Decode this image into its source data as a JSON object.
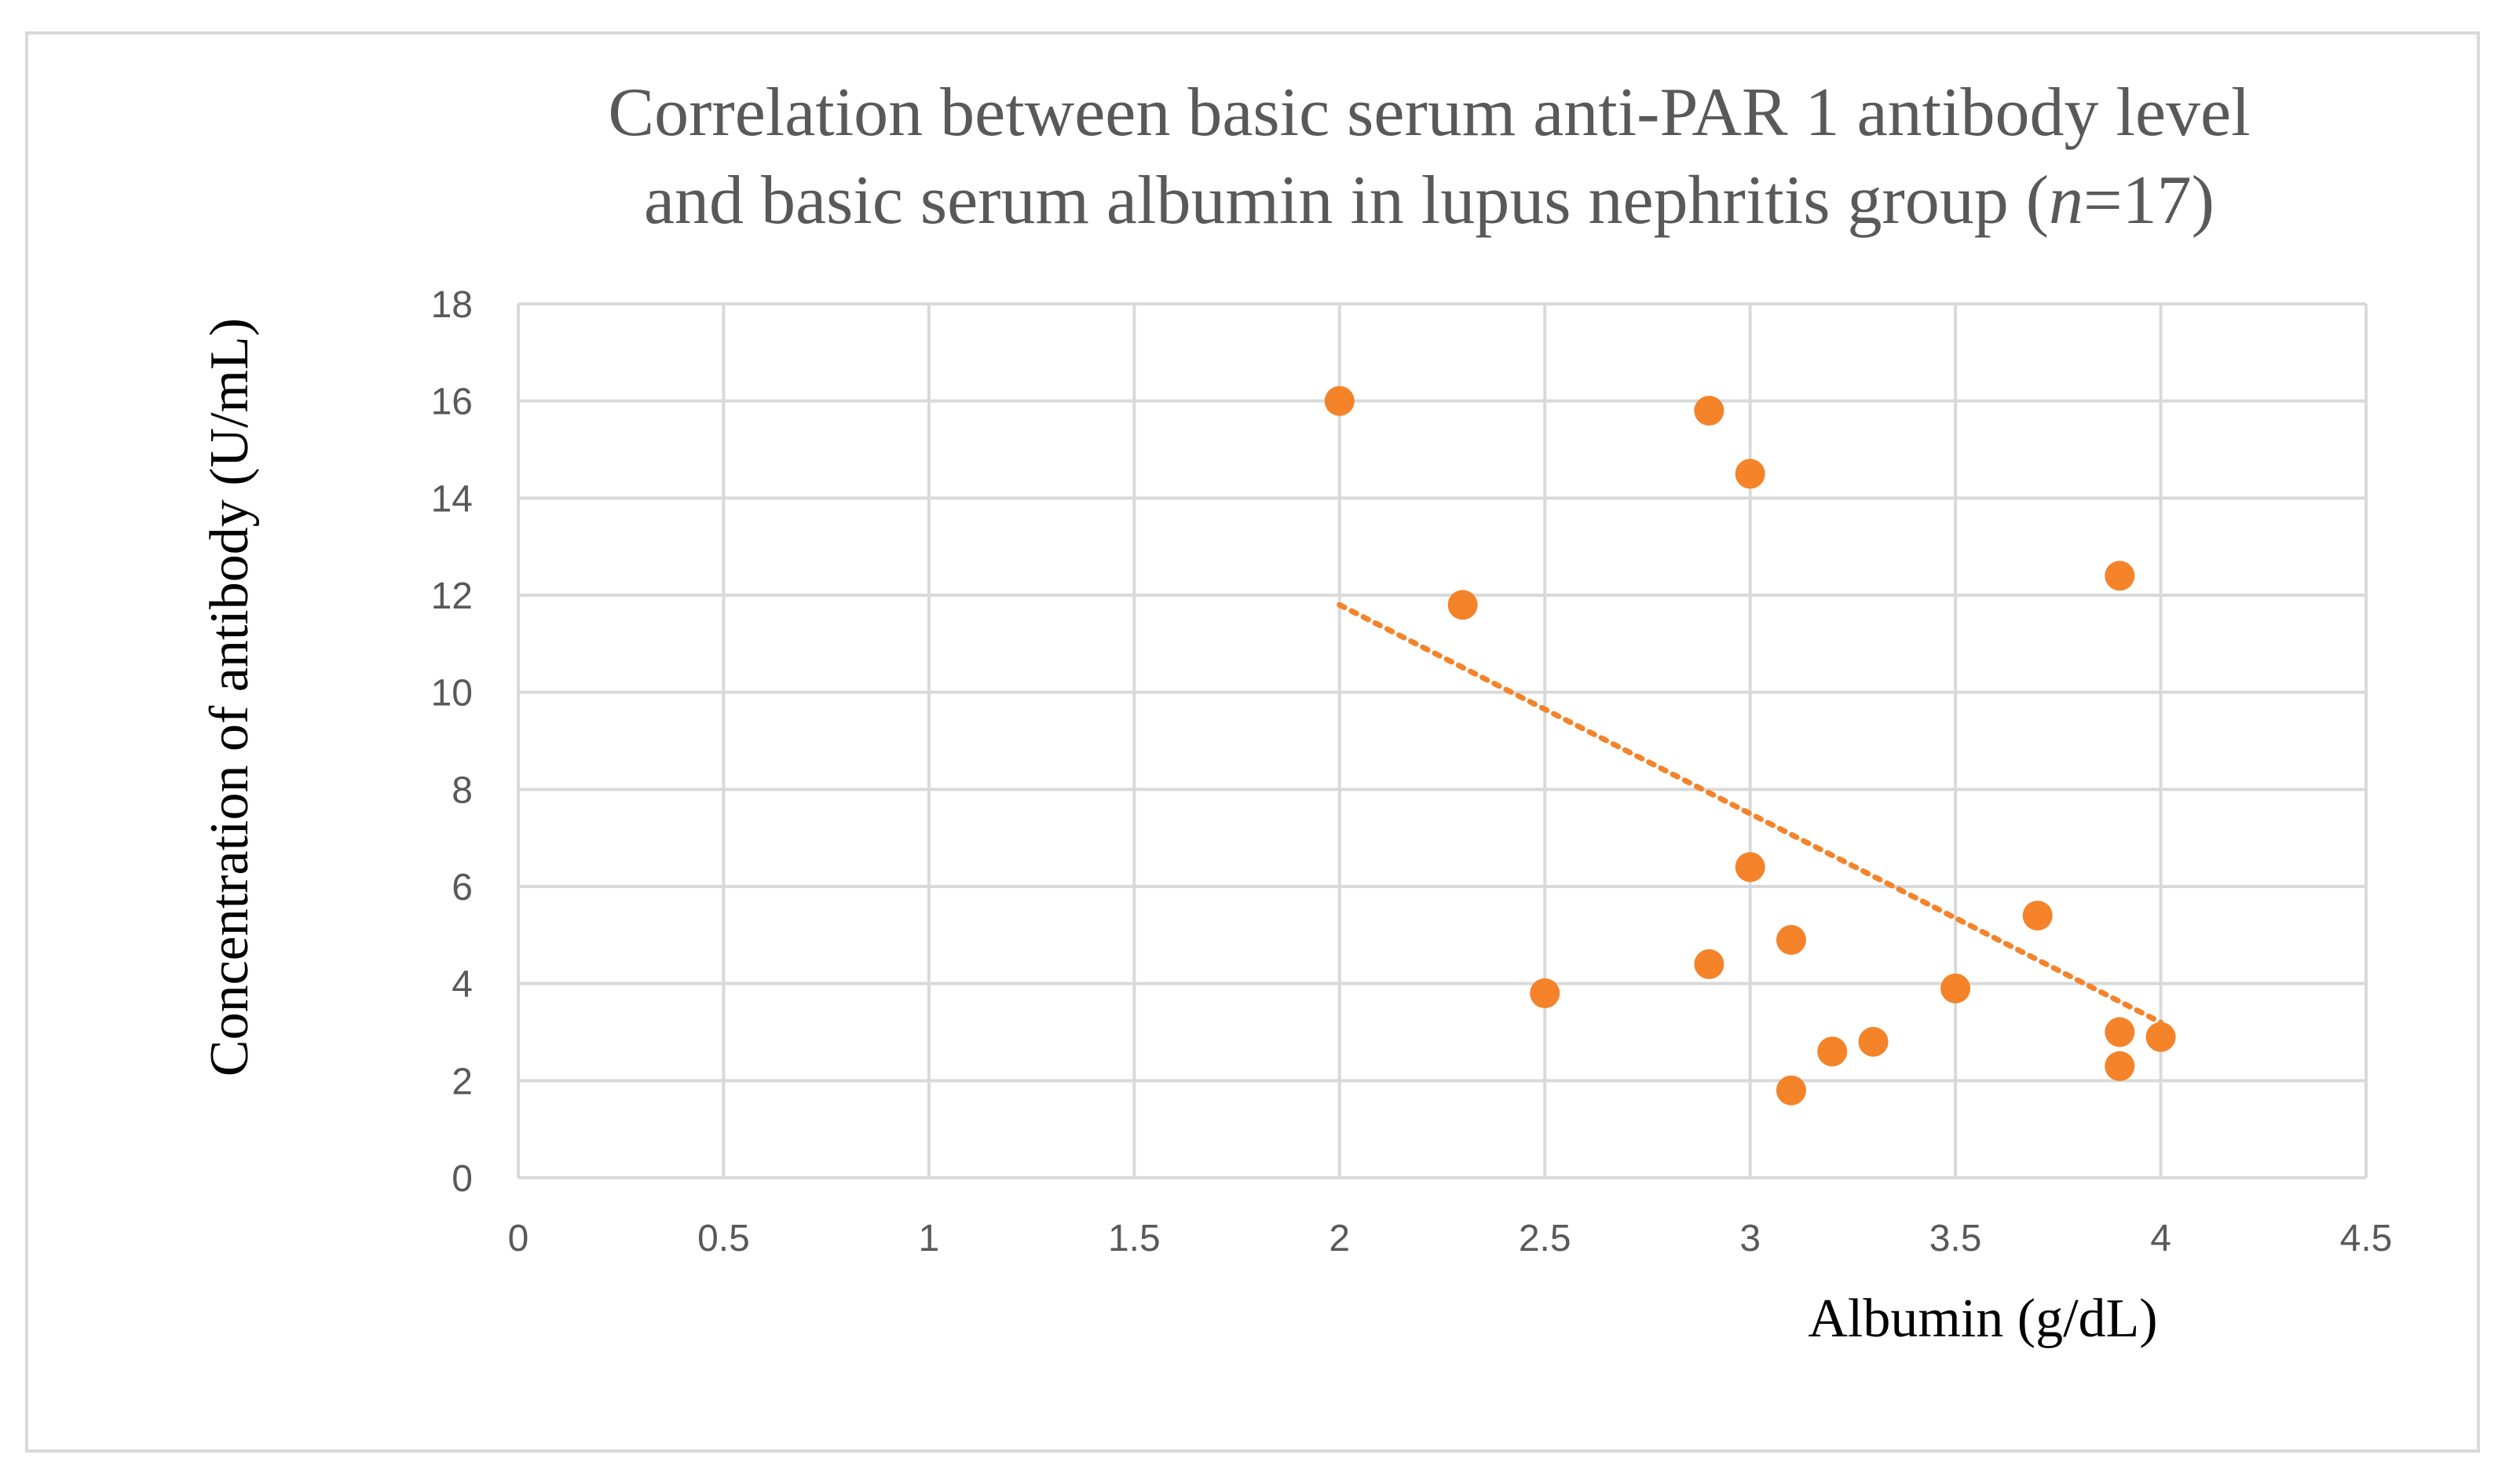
{
  "chart_data": {
    "type": "scatter",
    "title_line1": "Correlation between basic serum anti-PAR 1 antibody level",
    "title_line2_prefix": "and basic serum albumin in lupus nephritis group (",
    "title_line2_italic": "n",
    "title_line2_suffix": "=17)",
    "xlabel": "Albumin (g/dL)",
    "ylabel": "Concentration of antibody (U/mL)",
    "xlim": [
      0,
      4.5
    ],
    "ylim": [
      0,
      18
    ],
    "xticks": [
      0,
      0.5,
      1,
      1.5,
      2,
      2.5,
      3,
      3.5,
      4,
      4.5
    ],
    "yticks": [
      0,
      2,
      4,
      6,
      8,
      10,
      12,
      14,
      16,
      18
    ],
    "grid": true,
    "marker_color": "#f4832a",
    "trend_color": "#f4832a",
    "points": [
      {
        "x": 2.0,
        "y": 16.0
      },
      {
        "x": 2.9,
        "y": 15.8
      },
      {
        "x": 3.0,
        "y": 14.5
      },
      {
        "x": 3.9,
        "y": 12.4
      },
      {
        "x": 2.3,
        "y": 11.8
      },
      {
        "x": 3.0,
        "y": 6.4
      },
      {
        "x": 3.7,
        "y": 5.4
      },
      {
        "x": 3.1,
        "y": 4.9
      },
      {
        "x": 2.9,
        "y": 4.4
      },
      {
        "x": 3.5,
        "y": 3.9
      },
      {
        "x": 2.5,
        "y": 3.8
      },
      {
        "x": 3.9,
        "y": 3.0
      },
      {
        "x": 4.0,
        "y": 2.9
      },
      {
        "x": 3.3,
        "y": 2.8
      },
      {
        "x": 3.2,
        "y": 2.6
      },
      {
        "x": 3.9,
        "y": 2.3
      },
      {
        "x": 3.1,
        "y": 1.8
      }
    ],
    "trendline": {
      "type": "linear",
      "x_start": 2.0,
      "x_end": 4.0,
      "y_start": 11.8,
      "y_end": 3.2
    }
  }
}
